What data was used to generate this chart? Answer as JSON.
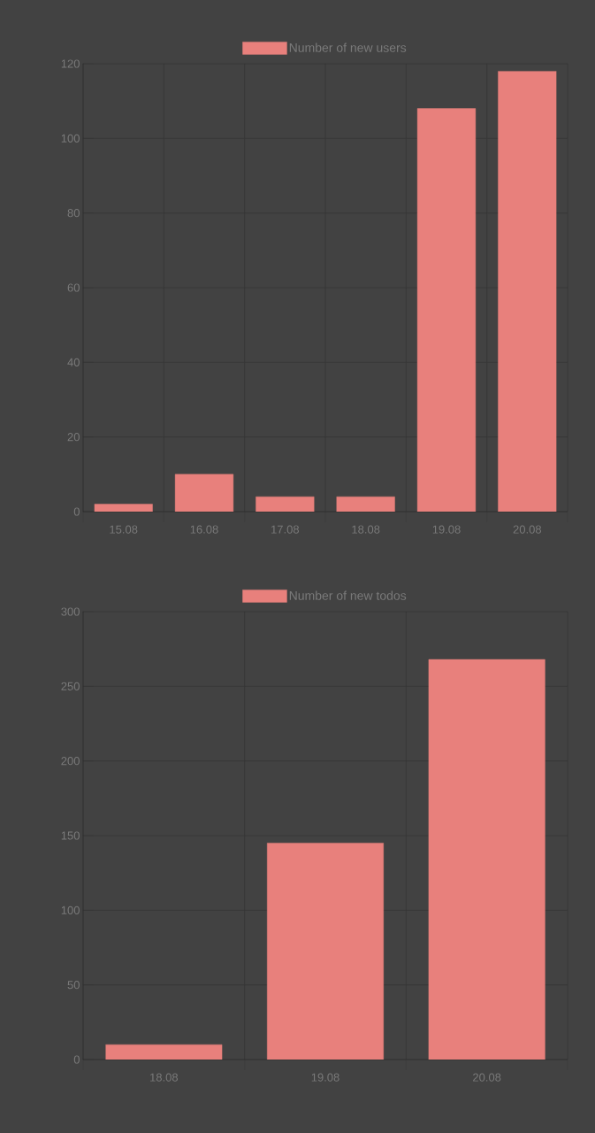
{
  "chart_data": [
    {
      "type": "bar",
      "categories": [
        "15.08",
        "16.08",
        "17.08",
        "18.08",
        "19.08",
        "20.08"
      ],
      "series": [
        {
          "name": "Number of new users",
          "color": "#e8807c",
          "values": [
            2,
            10,
            4,
            4,
            108,
            118
          ]
        }
      ],
      "ylim": [
        0,
        120
      ],
      "yticks": [
        0,
        20,
        40,
        60,
        80,
        100,
        120
      ],
      "grid": true,
      "legend": "top"
    },
    {
      "type": "bar",
      "categories": [
        "18.08",
        "19.08",
        "20.08"
      ],
      "series": [
        {
          "name": "Number of new todos",
          "color": "#e8807c",
          "values": [
            10,
            145,
            268
          ]
        }
      ],
      "ylim": [
        0,
        300
      ],
      "yticks": [
        0,
        50,
        100,
        150,
        200,
        250,
        300
      ],
      "grid": true,
      "legend": "top"
    }
  ]
}
